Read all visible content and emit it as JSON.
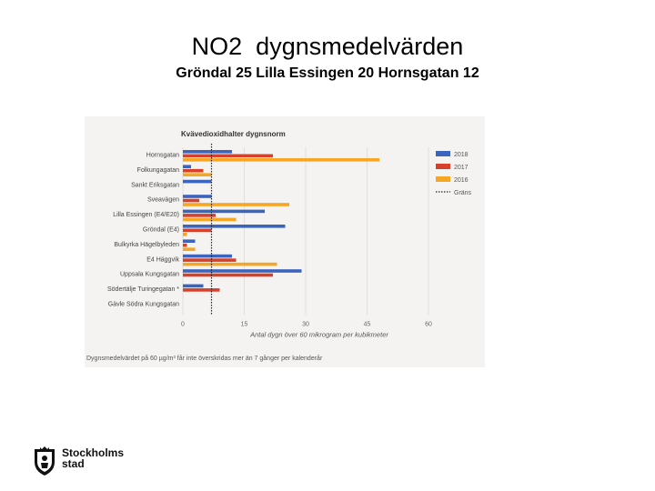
{
  "slide": {
    "title": "NO2  dygnsmedelvärden",
    "subtitle": "Gröndal 25 Lilla Essingen 20 Hornsgatan 12"
  },
  "logo": {
    "line1": "Stockholms",
    "line2": "stad"
  },
  "colors": {
    "y2018": "#3a64bd",
    "y2017": "#d7402b",
    "y2016": "#f5a623",
    "background": "#f4f3f1"
  },
  "chart_data": {
    "type": "bar",
    "orientation": "horizontal",
    "title": "Kvävedioxidhalter dygnsnorm",
    "categories": [
      "Hornsgatan",
      "Folkungagatan",
      "Sankt Eriksgatan",
      "Sveavägen",
      "Lilla Essingen (E4/E20)",
      "Gröndal (E4)",
      "Bulkyrka Hägelbyleden",
      "E4 Häggvik",
      "Uppsala Kungsgatan",
      "Södertälje Turingegatan *",
      "Gävle Södra Kungsgatan"
    ],
    "series": [
      {
        "name": "2018",
        "color": "#3a64bd",
        "values": [
          12,
          2,
          7,
          7,
          20,
          25,
          3,
          12,
          29,
          5,
          0
        ]
      },
      {
        "name": "2017",
        "color": "#d7402b",
        "values": [
          22,
          5,
          0,
          4,
          8,
          7,
          1,
          13,
          22,
          9,
          0
        ]
      },
      {
        "name": "2016",
        "color": "#f5a623",
        "values": [
          48,
          7,
          0,
          26,
          13,
          1,
          3,
          23,
          0,
          0,
          0
        ]
      }
    ],
    "threshold": {
      "name": "Gräns",
      "value": 7
    },
    "xlim": [
      0,
      60
    ],
    "xticks": [
      "0",
      "15",
      "30",
      "45",
      "60"
    ],
    "xlabel": "Antal dygn över 60 mikrogram per kubikmeter",
    "footnote": "Dygnsmedelvärdet på 60 µg/m³ får inte överskridas mer än 7 gånger per kalenderår",
    "legend_position": "top-right"
  }
}
